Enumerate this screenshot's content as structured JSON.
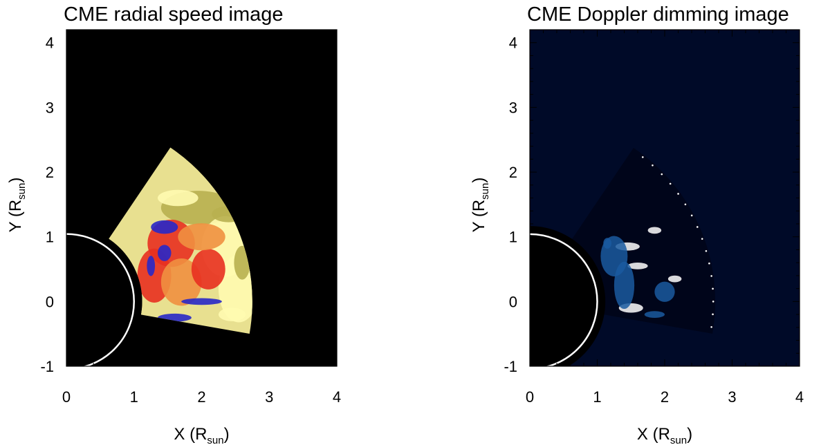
{
  "chart_data": [
    {
      "type": "heatmap",
      "title": "CME radial speed image",
      "xlabel": "X (R",
      "xlabel_sub": "sun",
      "xlabel_end": ")",
      "ylabel": "Y (R",
      "ylabel_sub": "sun",
      "ylabel_end": ")",
      "xlim": [
        0,
        4
      ],
      "ylim": [
        -1,
        4.2
      ],
      "x_ticks": [
        0,
        1,
        2,
        3,
        4
      ],
      "y_ticks": [
        -1,
        0,
        1,
        2,
        3,
        4
      ],
      "background": "#000000",
      "limb_circle": {
        "cx": 0,
        "cy": 0,
        "r": 1,
        "color": "#ffffff"
      },
      "occulter_radius": 1.12,
      "cme_region": {
        "r_inner": 1.12,
        "r_outer": 2.75,
        "angle_range_deg": [
          -10,
          56
        ]
      },
      "colors": {
        "fill": "#e8e090",
        "highlight": "#fffbb0",
        "red": "#e83020",
        "orange": "#f09040",
        "olive": "#b8b050",
        "blue": "#2828c8"
      }
    },
    {
      "type": "heatmap",
      "title": "CME Doppler dimming image",
      "xlabel": "X (R",
      "xlabel_sub": "sun",
      "xlabel_end": ")",
      "ylabel": "Y (R",
      "ylabel_sub": "sun",
      "ylabel_end": ")",
      "xlim": [
        0,
        4
      ],
      "ylim": [
        -1,
        4.2
      ],
      "x_ticks": [
        0,
        1,
        2,
        3,
        4
      ],
      "y_ticks": [
        -1,
        0,
        1,
        2,
        3,
        4
      ],
      "background": "#000a28",
      "limb_circle": {
        "cx": 0,
        "cy": 0,
        "r": 1,
        "color": "#ffffff"
      },
      "occulter_radius": 1.12,
      "cme_region": {
        "r_inner": 1.12,
        "r_outer": 2.75,
        "angle_range_deg": [
          -10,
          56
        ]
      },
      "colors": {
        "fill": "#00051a",
        "highlight": "#ffffff",
        "mid": "#1a5aa0"
      }
    }
  ]
}
